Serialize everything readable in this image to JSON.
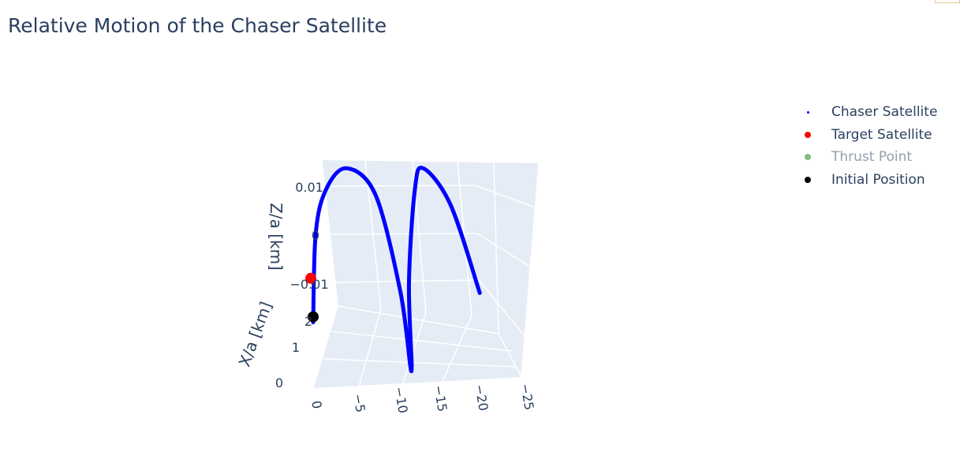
{
  "title": "Relative Motion of the Chaser Satellite",
  "chart_data": {
    "type": "scatter3d",
    "title": "Relative Motion of the Chaser Satellite",
    "axes": {
      "x": {
        "label": "X/a [km]",
        "ticks": [
          "0",
          "1",
          "2"
        ]
      },
      "y": {
        "label": "",
        "ticks": [
          "0",
          "−5",
          "−10",
          "−15",
          "−20",
          "−25"
        ]
      },
      "z": {
        "label": "Z/a [km]",
        "ticks": [
          "0.01",
          "0",
          "−0.01"
        ]
      }
    },
    "grid": true,
    "legend_placement": "top-right",
    "series": [
      {
        "name": "Chaser Satellite",
        "color": "#0000ff",
        "mode": "markers",
        "trajectory": [
          {
            "y": 0,
            "z": -0.018
          },
          {
            "y": -0.3,
            "z": 0.0
          },
          {
            "y": -1.5,
            "z": 0.009
          },
          {
            "y": -4.0,
            "z": 0.0135
          },
          {
            "y": -7.5,
            "z": 0.008
          },
          {
            "y": -10.5,
            "z": -0.012
          },
          {
            "y": -11.8,
            "z": -0.028
          },
          {
            "y": -11.5,
            "z": -0.01
          },
          {
            "y": -12.2,
            "z": 0.009
          },
          {
            "y": -13.2,
            "z": 0.0135
          },
          {
            "y": -16.5,
            "z": 0.006
          },
          {
            "y": -20.0,
            "z": -0.012
          }
        ]
      },
      {
        "name": "Target Satellite",
        "color": "#ff0000",
        "mode": "markers",
        "points": [
          {
            "y": 0,
            "z": -0.009
          }
        ]
      },
      {
        "name": "Thrust Point",
        "color": "#008000",
        "mode": "markers",
        "visible": "legendonly",
        "points": []
      },
      {
        "name": "Initial Position",
        "color": "#000000",
        "mode": "markers",
        "points": [
          {
            "y": 0,
            "z": -0.018
          }
        ]
      }
    ]
  }
}
